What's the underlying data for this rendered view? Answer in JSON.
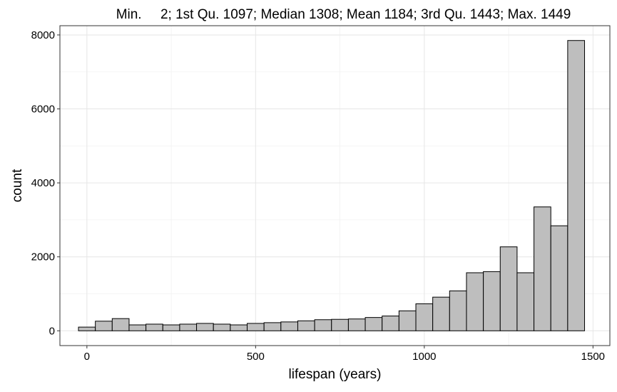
{
  "chart_data": {
    "type": "bar",
    "title": "Min.     2; 1st Qu. 1097; Median 1308; Mean 1184; 3rd Qu. 1443; Max. 1449",
    "xlabel": "lifespan (years)",
    "ylabel": "count",
    "xlim": [
      -80,
      1550
    ],
    "ylim": [
      -400,
      8250
    ],
    "bin_width": 50,
    "bin_start": -25,
    "x_ticks": [
      0,
      500,
      1000,
      1500
    ],
    "y_ticks": [
      0,
      2000,
      4000,
      6000,
      8000
    ],
    "x_tick_labels": [
      "0",
      "500",
      "1000",
      "1500"
    ],
    "y_tick_labels": [
      "0",
      "2000",
      "4000",
      "6000",
      "8000"
    ],
    "values": [
      100,
      260,
      330,
      160,
      180,
      160,
      180,
      200,
      180,
      160,
      200,
      220,
      240,
      270,
      300,
      310,
      320,
      360,
      400,
      540,
      730,
      910,
      1080,
      1570,
      1600,
      2270,
      1570,
      3350,
      2840,
      7850
    ],
    "grid": true,
    "bar_fill": "#bebebe",
    "bar_stroke": "#000000"
  }
}
